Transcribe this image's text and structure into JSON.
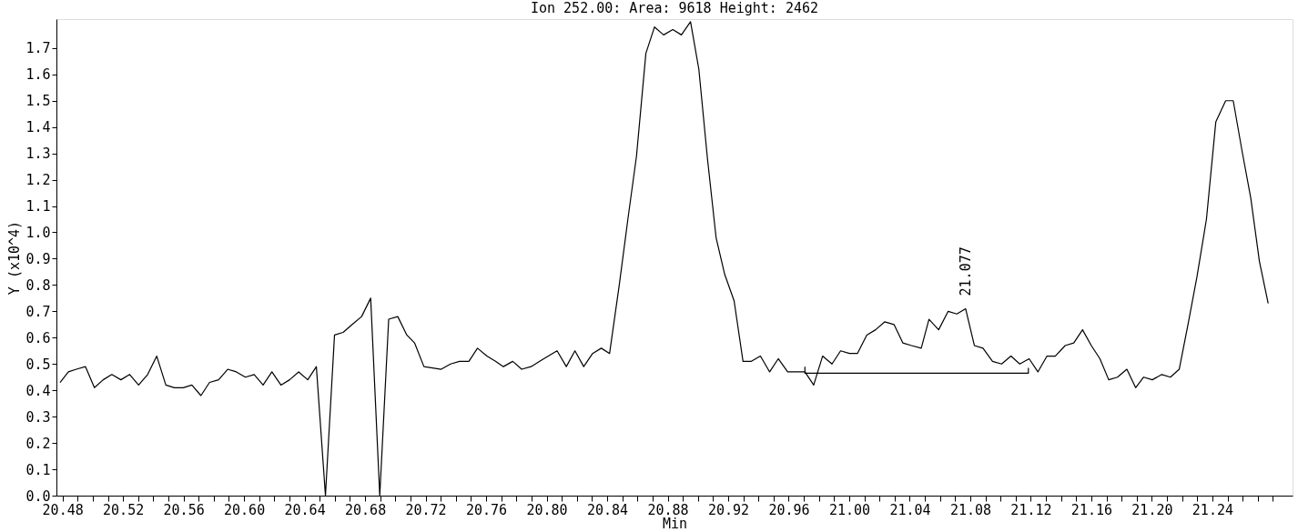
{
  "chart_data": {
    "type": "line",
    "title": "Ion 252.00: Area:  9618  Height: 2462",
    "xlabel": "Min",
    "ylabel": "Y (x10^4)",
    "xlim": [
      20.476,
      21.293
    ],
    "ylim": [
      0,
      1.81
    ],
    "xticks": [
      20.48,
      {
        "value": 20.49,
        "label": null
      },
      {
        "value": 20.5,
        "label": null
      },
      {
        "value": 20.51,
        "label": null
      },
      20.52,
      {
        "value": 20.53,
        "label": null
      },
      {
        "value": 20.54,
        "label": null
      },
      {
        "value": 20.55,
        "label": null
      },
      20.56,
      {
        "value": 20.57,
        "label": null
      },
      {
        "value": 20.58,
        "label": null
      },
      {
        "value": 20.59,
        "label": null
      },
      {
        "value": 20.6,
        "label": "20.60"
      },
      {
        "value": 20.61,
        "label": null
      },
      {
        "value": 20.62,
        "label": null
      },
      {
        "value": 20.63,
        "label": null
      },
      20.64,
      {
        "value": 20.65,
        "label": null
      },
      {
        "value": 20.66,
        "label": null
      },
      {
        "value": 20.67,
        "label": null
      },
      20.68,
      {
        "value": 20.69,
        "label": null
      },
      {
        "value": 20.7,
        "label": null
      },
      {
        "value": 20.71,
        "label": null
      },
      20.72,
      {
        "value": 20.73,
        "label": null
      },
      {
        "value": 20.74,
        "label": null
      },
      {
        "value": 20.75,
        "label": null
      },
      20.76,
      {
        "value": 20.77,
        "label": null
      },
      {
        "value": 20.78,
        "label": null
      },
      {
        "value": 20.79,
        "label": null
      },
      {
        "value": 20.8,
        "label": "20.80"
      },
      {
        "value": 20.81,
        "label": null
      },
      {
        "value": 20.82,
        "label": null
      },
      {
        "value": 20.83,
        "label": null
      },
      20.84,
      {
        "value": 20.85,
        "label": null
      },
      {
        "value": 20.86,
        "label": null
      },
      {
        "value": 20.87,
        "label": null
      },
      20.88,
      {
        "value": 20.89,
        "label": null
      },
      {
        "value": 20.9,
        "label": null
      },
      {
        "value": 20.91,
        "label": null
      },
      20.92,
      {
        "value": 20.93,
        "label": null
      },
      {
        "value": 20.94,
        "label": null
      },
      {
        "value": 20.95,
        "label": null
      },
      20.96,
      {
        "value": 20.97,
        "label": null
      },
      {
        "value": 20.98,
        "label": null
      },
      {
        "value": 20.99,
        "label": null
      },
      {
        "value": 21.0,
        "label": "21.00"
      },
      {
        "value": 21.01,
        "label": null
      },
      {
        "value": 21.02,
        "label": null
      },
      {
        "value": 21.03,
        "label": null
      },
      21.04,
      {
        "value": 21.05,
        "label": null
      },
      {
        "value": 21.06,
        "label": null
      },
      {
        "value": 21.07,
        "label": null
      },
      21.08,
      {
        "value": 21.09,
        "label": null
      },
      {
        "value": 21.1,
        "label": null
      },
      {
        "value": 21.11,
        "label": null
      },
      21.12,
      {
        "value": 21.13,
        "label": null
      },
      {
        "value": 21.14,
        "label": null
      },
      {
        "value": 21.15,
        "label": null
      },
      21.16,
      {
        "value": 21.17,
        "label": null
      },
      {
        "value": 21.18,
        "label": null
      },
      {
        "value": 21.19,
        "label": null
      },
      {
        "value": 21.2,
        "label": "21.20"
      },
      {
        "value": 21.21,
        "label": null
      },
      {
        "value": 21.22,
        "label": null
      },
      {
        "value": 21.23,
        "label": null
      },
      21.24,
      {
        "value": 21.25,
        "label": null
      },
      {
        "value": 21.26,
        "label": null
      },
      {
        "value": 21.27,
        "label": null
      },
      {
        "value": 21.28,
        "label": null
      }
    ],
    "yticks": [
      {
        "value": 0,
        "label": "0.0"
      },
      0.1,
      0.2,
      0.3,
      0.4,
      0.5,
      0.6,
      0.7,
      0.8,
      0.9,
      {
        "value": 1,
        "label": "1.0"
      },
      1.1,
      1.2,
      1.3,
      1.4,
      1.5,
      1.6,
      1.7
    ],
    "grid": false,
    "marker": "none",
    "line_style": "solid",
    "annotations": [
      {
        "text": "21.077",
        "x": 21.077,
        "y": 0.71
      }
    ],
    "series": [
      {
        "color": "#000000",
        "x": [
          20.4784,
          20.4839,
          20.4892,
          20.4952,
          20.5011,
          20.5069,
          20.5126,
          20.5186,
          20.5244,
          20.5303,
          20.5363,
          20.5423,
          20.5483,
          20.554,
          20.5598,
          20.5655,
          20.5715,
          20.5772,
          20.5832,
          20.5892,
          20.5949,
          20.6009,
          20.6067,
          20.6126,
          20.6184,
          20.6244,
          20.6301,
          20.6361,
          20.6421,
          20.6478,
          20.6538,
          20.6598,
          20.6655,
          20.6715,
          20.6777,
          20.6837,
          20.6897,
          20.6956,
          20.7016,
          20.7076,
          20.7127,
          20.7189,
          20.7303,
          20.7365,
          20.7424,
          20.7486,
          20.7543,
          20.7605,
          20.7662,
          20.7714,
          20.7776,
          20.7835,
          20.7897,
          20.7954,
          20.8011,
          20.8069,
          20.813,
          20.8187,
          20.8245,
          20.8304,
          20.8361,
          20.8416,
          20.848,
          20.8537,
          20.8594,
          20.8656,
          20.8713,
          20.8773,
          20.8834,
          20.8891,
          20.8951,
          20.9006,
          20.9063,
          20.912,
          20.9177,
          20.9239,
          20.9298,
          20.9353,
          20.9413,
          20.9474,
          20.9531,
          20.9593,
          20.965,
          20.9707,
          20.9765,
          20.9824,
          20.9886,
          20.9943,
          21.0001,
          21.0054,
          21.0116,
          21.0174,
          21.0234,
          21.0296,
          21.0354,
          21.0412,
          21.0476,
          21.0527,
          21.0591,
          21.0654,
          21.0711,
          21.0769,
          21.0827,
          21.0884,
          21.0947,
          21.1007,
          21.1069,
          21.1127,
          21.1189,
          21.1247,
          21.1307,
          21.1362,
          21.1427,
          21.1484,
          21.1542,
          21.16,
          21.1657,
          21.1715,
          21.1773,
          21.1835,
          21.1893,
          21.1946,
          21.2003,
          21.2066,
          21.2123,
          21.2181,
          21.2239,
          21.2298,
          21.2361,
          21.2423,
          21.2488,
          21.2538,
          21.2596,
          21.2654,
          21.2711,
          21.2769
        ],
        "values": [
          0.43,
          0.47,
          0.48,
          0.49,
          0.41,
          0.44,
          0.46,
          0.44,
          0.46,
          0.42,
          0.46,
          0.53,
          0.42,
          0.41,
          0.41,
          0.42,
          0.38,
          0.43,
          0.44,
          0.48,
          0.47,
          0.45,
          0.46,
          0.42,
          0.47,
          0.42,
          0.44,
          0.47,
          0.44,
          0.49,
          0.0,
          0.61,
          0.62,
          0.65,
          0.68,
          0.75,
          0.0,
          0.67,
          0.68,
          0.61,
          0.58,
          0.49,
          0.48,
          0.5,
          0.51,
          0.51,
          0.56,
          0.53,
          0.51,
          0.49,
          0.51,
          0.48,
          0.49,
          0.51,
          0.53,
          0.55,
          0.49,
          0.55,
          0.49,
          0.54,
          0.56,
          0.54,
          0.8,
          1.05,
          1.29,
          1.68,
          1.78,
          1.75,
          1.77,
          1.75,
          1.8,
          1.62,
          1.28,
          0.98,
          0.84,
          0.74,
          0.51,
          0.51,
          0.53,
          0.47,
          0.52,
          0.47,
          0.47,
          0.47,
          0.42,
          0.53,
          0.5,
          0.55,
          0.54,
          0.54,
          0.61,
          0.63,
          0.66,
          0.65,
          0.58,
          0.57,
          0.56,
          0.67,
          0.63,
          0.7,
          0.69,
          0.71,
          0.57,
          0.56,
          0.51,
          0.5,
          0.53,
          0.5,
          0.52,
          0.47,
          0.53,
          0.53,
          0.57,
          0.58,
          0.63,
          0.57,
          0.52,
          0.44,
          0.45,
          0.48,
          0.41,
          0.45,
          0.44,
          0.46,
          0.45,
          0.48,
          0.65,
          0.83,
          1.05,
          1.42,
          1.5,
          1.5,
          1.31,
          1.13,
          0.89,
          0.73
        ]
      },
      {
        "color": "#000000",
        "x": [
          20.9707,
          20.9707,
          21.1184,
          21.1184
        ],
        "values": [
          0.49,
          0.465,
          0.465,
          0.485
        ]
      }
    ]
  }
}
